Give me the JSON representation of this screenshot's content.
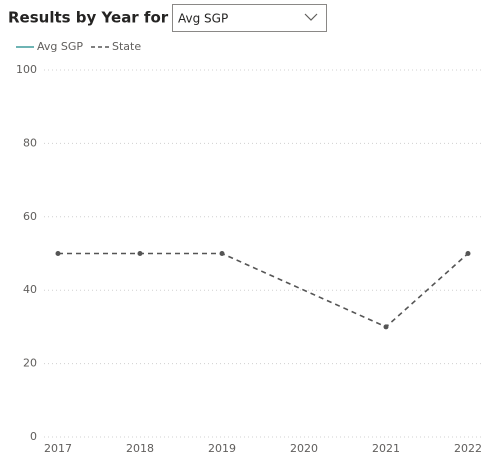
{
  "dropdown": {
    "selected": "Avg SGP"
  },
  "chart_data": {
    "type": "line",
    "title": "Results by Year for",
    "xlim": [
      2017,
      2022
    ],
    "xticks": [
      2017,
      2018,
      2019,
      2020,
      2021,
      2022
    ],
    "ylim": [
      0,
      100
    ],
    "yticks": [
      0,
      20,
      40,
      60,
      80,
      100
    ],
    "grid": true,
    "series": [
      {
        "name": "Avg SGP",
        "color": "#3f9c9c",
        "dash": false
      },
      {
        "name": "State",
        "color": "#555555",
        "dash": true,
        "x": [
          2017,
          2018,
          2019,
          2021,
          2022
        ],
        "values": [
          50,
          50,
          50,
          30,
          50
        ]
      }
    ]
  }
}
